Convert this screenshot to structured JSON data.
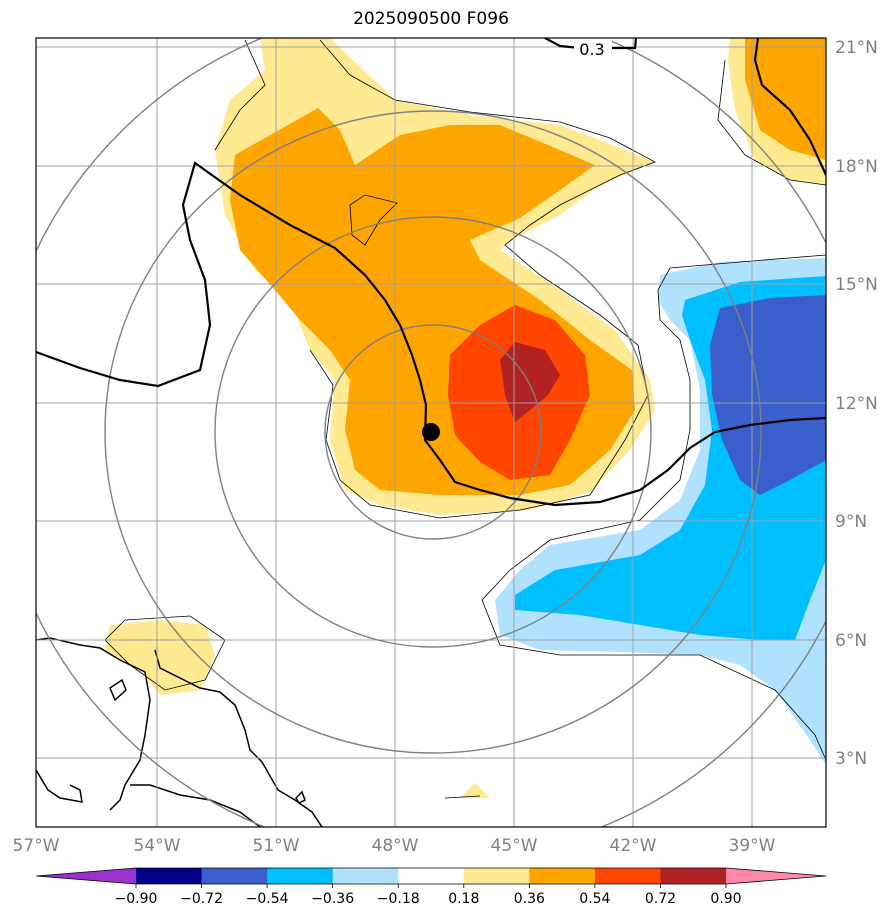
{
  "title": "2025090500 F096",
  "lon_ticks": [
    "57°W",
    "54°W",
    "51°W",
    "48°W",
    "45°W",
    "42°W",
    "39°W"
  ],
  "lat_ticks": [
    "21°N",
    "18°N",
    "15°N",
    "12°N",
    "9°N",
    "6°N",
    "3°N"
  ],
  "contour_label": "0.3",
  "colorbar": {
    "ticks": [
      "−0.90",
      "−0.72",
      "−0.54",
      "−0.36",
      "−0.18",
      "0.18",
      "0.36",
      "0.54",
      "0.72",
      "0.90"
    ],
    "colors": [
      "#9932cc",
      "#00008b",
      "#3a5fcd",
      "#00bfff",
      "#b0e2ff",
      "#ffffff",
      "#ffe991",
      "#ffa500",
      "#ff4500",
      "#b22222",
      "#ff88aa"
    ]
  },
  "colors": {
    "light_yellow": "#ffe991",
    "orange": "#ffa500",
    "red_orange": "#ff4500",
    "dark_red": "#b22222",
    "light_blue": "#b0e2ff",
    "sky_blue": "#00bfff",
    "royal_blue": "#3a5fcd",
    "grid": "#a0a0a0",
    "range_rings": "#808080"
  },
  "storm_center": {
    "lon": -47.1,
    "lat": 11.2
  }
}
